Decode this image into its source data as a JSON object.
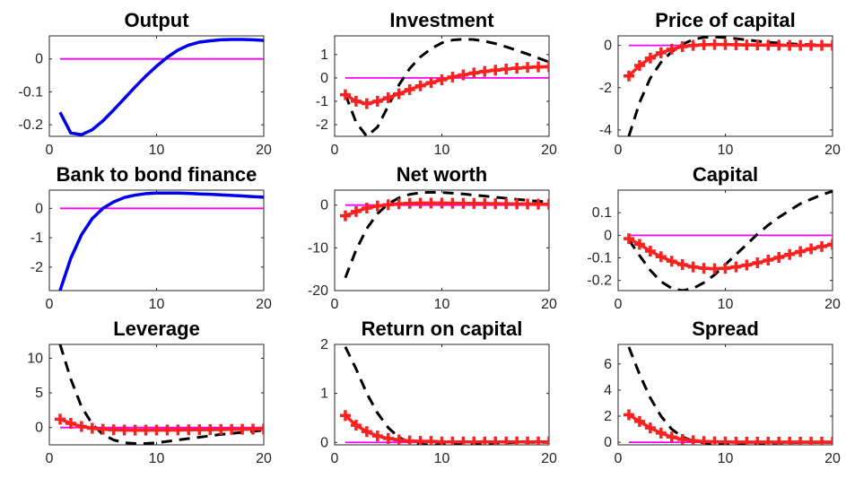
{
  "figure": {
    "colors": {
      "model": "#0000ee",
      "data_line": "#000000",
      "marker_series": "#ff1f1f",
      "zero_line": "#ff00ff"
    }
  },
  "chart_data": [
    {
      "type": "line",
      "title": "Output",
      "xlim": [
        0,
        20
      ],
      "ylim": [
        -0.235,
        0.07
      ],
      "xticks": [
        0,
        10,
        20
      ],
      "xtick_labels": [
        "0",
        "10",
        "20"
      ],
      "yticks": [
        0,
        -0.1,
        -0.2
      ],
      "ytick_labels": [
        "0",
        "-0.1",
        "-0.2"
      ],
      "series": [
        {
          "style": "solid-blue",
          "x": [
            1,
            2,
            3,
            4,
            5,
            6,
            7,
            8,
            9,
            10,
            11,
            12,
            13,
            14,
            15,
            16,
            17,
            18,
            19,
            20
          ],
          "values": [
            -0.162,
            -0.225,
            -0.23,
            -0.215,
            -0.188,
            -0.155,
            -0.12,
            -0.085,
            -0.052,
            -0.022,
            0.005,
            0.027,
            0.042,
            0.051,
            0.055,
            0.058,
            0.059,
            0.059,
            0.058,
            0.056
          ]
        },
        {
          "style": "zero-magenta",
          "x": [
            1,
            20
          ],
          "values": [
            0,
            0
          ]
        }
      ]
    },
    {
      "type": "line",
      "title": "Investment",
      "xlim": [
        0,
        20
      ],
      "ylim": [
        -2.5,
        1.8
      ],
      "xticks": [
        0,
        10,
        20
      ],
      "xtick_labels": [
        "0",
        "10",
        "20"
      ],
      "yticks": [
        1,
        0,
        -1,
        -2
      ],
      "ytick_labels": [
        "1",
        "0",
        "-1",
        "-2"
      ],
      "series": [
        {
          "style": "dashed-black",
          "x": [
            1,
            2,
            3,
            4,
            5,
            6,
            7,
            8,
            9,
            10,
            11,
            12,
            13,
            14,
            15,
            16,
            17,
            18,
            19,
            20
          ],
          "values": [
            -0.7,
            -1.9,
            -2.5,
            -2.1,
            -1.2,
            -0.3,
            0.4,
            0.9,
            1.25,
            1.5,
            1.62,
            1.66,
            1.64,
            1.57,
            1.47,
            1.33,
            1.18,
            1.02,
            0.85,
            0.68
          ]
        },
        {
          "style": "plus-red",
          "x": [
            1,
            2,
            3,
            4,
            5,
            6,
            7,
            8,
            9,
            10,
            11,
            12,
            13,
            14,
            15,
            16,
            17,
            18,
            19,
            20
          ],
          "values": [
            -0.72,
            -1.0,
            -1.1,
            -1.0,
            -0.85,
            -0.68,
            -0.5,
            -0.34,
            -0.2,
            -0.08,
            0.04,
            0.13,
            0.21,
            0.28,
            0.33,
            0.38,
            0.42,
            0.45,
            0.47,
            0.48
          ]
        },
        {
          "style": "zero-magenta",
          "x": [
            1,
            20
          ],
          "values": [
            0,
            0
          ]
        }
      ]
    },
    {
      "type": "line",
      "title": "Price of capital",
      "xlim": [
        0,
        20
      ],
      "ylim": [
        -4.3,
        0.45
      ],
      "xticks": [
        0,
        10,
        20
      ],
      "xtick_labels": [
        "0",
        "10",
        "20"
      ],
      "yticks": [
        0,
        -2,
        -4
      ],
      "ytick_labels": [
        "0",
        "-2",
        "-4"
      ],
      "series": [
        {
          "style": "dashed-black",
          "x": [
            1,
            2,
            3,
            4,
            5,
            6,
            7,
            8,
            9,
            10,
            11,
            12,
            13,
            14,
            15,
            16,
            17,
            18,
            19,
            20
          ],
          "values": [
            -4.3,
            -2.7,
            -1.55,
            -0.8,
            -0.3,
            0.05,
            0.28,
            0.38,
            0.4,
            0.37,
            0.32,
            0.26,
            0.2,
            0.15,
            0.11,
            0.08,
            0.05,
            0.03,
            0.02,
            0.01
          ]
        },
        {
          "style": "plus-red",
          "x": [
            1,
            2,
            3,
            4,
            5,
            6,
            7,
            8,
            9,
            10,
            11,
            12,
            13,
            14,
            15,
            16,
            17,
            18,
            19,
            20
          ],
          "values": [
            -1.45,
            -0.95,
            -0.6,
            -0.35,
            -0.18,
            -0.06,
            0.0,
            0.03,
            0.04,
            0.04,
            0.03,
            0.02,
            0.02,
            0.01,
            0.01,
            0.0,
            0.0,
            0.0,
            0.0,
            0.0
          ]
        },
        {
          "style": "zero-magenta",
          "x": [
            1,
            20
          ],
          "values": [
            0,
            0
          ]
        }
      ]
    },
    {
      "type": "line",
      "title": "Bank to bond finance",
      "xlim": [
        0,
        20
      ],
      "ylim": [
        -2.8,
        0.62
      ],
      "xticks": [
        0,
        10,
        20
      ],
      "xtick_labels": [
        "0",
        "10",
        "20"
      ],
      "yticks": [
        0,
        -1,
        -2
      ],
      "ytick_labels": [
        "0",
        "-1",
        "-2"
      ],
      "series": [
        {
          "style": "solid-blue",
          "x": [
            1,
            2,
            3,
            4,
            5,
            6,
            7,
            8,
            9,
            10,
            11,
            12,
            13,
            14,
            15,
            16,
            17,
            18,
            19,
            20
          ],
          "values": [
            -2.8,
            -1.7,
            -0.9,
            -0.35,
            0.0,
            0.22,
            0.37,
            0.45,
            0.5,
            0.52,
            0.52,
            0.52,
            0.51,
            0.49,
            0.48,
            0.46,
            0.44,
            0.42,
            0.4,
            0.38
          ]
        },
        {
          "style": "zero-magenta",
          "x": [
            1,
            20
          ],
          "values": [
            0,
            0
          ]
        }
      ]
    },
    {
      "type": "line",
      "title": "Net worth",
      "xlim": [
        0,
        20
      ],
      "ylim": [
        -20,
        3.5
      ],
      "xticks": [
        0,
        10,
        20
      ],
      "xtick_labels": [
        "0",
        "10",
        "20"
      ],
      "yticks": [
        0,
        -10,
        -20
      ],
      "ytick_labels": [
        "0",
        "-10",
        "-20"
      ],
      "series": [
        {
          "style": "dashed-black",
          "x": [
            1,
            2,
            3,
            4,
            5,
            6,
            7,
            8,
            9,
            10,
            11,
            12,
            13,
            14,
            15,
            16,
            17,
            18,
            19,
            20
          ],
          "values": [
            -17,
            -10.5,
            -5.5,
            -2.0,
            0.3,
            1.7,
            2.5,
            2.9,
            3.0,
            2.95,
            2.8,
            2.6,
            2.35,
            2.1,
            1.85,
            1.6,
            1.35,
            1.1,
            0.9,
            0.7
          ]
        },
        {
          "style": "plus-red",
          "x": [
            1,
            2,
            3,
            4,
            5,
            6,
            7,
            8,
            9,
            10,
            11,
            12,
            13,
            14,
            15,
            16,
            17,
            18,
            19,
            20
          ],
          "values": [
            -2.5,
            -1.5,
            -0.7,
            -0.2,
            0.1,
            0.3,
            0.4,
            0.45,
            0.45,
            0.45,
            0.42,
            0.4,
            0.38,
            0.35,
            0.32,
            0.3,
            0.28,
            0.25,
            0.22,
            0.2
          ]
        },
        {
          "style": "zero-magenta",
          "x": [
            1,
            20
          ],
          "values": [
            0,
            0
          ]
        }
      ]
    },
    {
      "type": "line",
      "title": "Capital",
      "xlim": [
        0,
        20
      ],
      "ylim": [
        -0.245,
        0.2
      ],
      "xticks": [
        0,
        10,
        20
      ],
      "xtick_labels": [
        "0",
        "10",
        "20"
      ],
      "yticks": [
        0.1,
        0,
        -0.1,
        -0.2
      ],
      "ytick_labels": [
        "0.1",
        "0",
        "-0.1",
        "-0.2"
      ],
      "series": [
        {
          "style": "dashed-black",
          "x": [
            1,
            2,
            3,
            4,
            5,
            6,
            7,
            8,
            9,
            10,
            11,
            12,
            13,
            14,
            15,
            16,
            17,
            18,
            19,
            20
          ],
          "values": [
            -0.02,
            -0.09,
            -0.155,
            -0.205,
            -0.235,
            -0.245,
            -0.235,
            -0.21,
            -0.175,
            -0.13,
            -0.085,
            -0.04,
            0.005,
            0.045,
            0.08,
            0.11,
            0.14,
            0.16,
            0.18,
            0.195
          ]
        },
        {
          "style": "plus-red",
          "x": [
            1,
            2,
            3,
            4,
            5,
            6,
            7,
            8,
            9,
            10,
            11,
            12,
            13,
            14,
            15,
            16,
            17,
            18,
            19,
            20
          ],
          "values": [
            -0.015,
            -0.04,
            -0.07,
            -0.095,
            -0.115,
            -0.13,
            -0.14,
            -0.146,
            -0.148,
            -0.146,
            -0.14,
            -0.132,
            -0.122,
            -0.11,
            -0.098,
            -0.085,
            -0.072,
            -0.06,
            -0.05,
            -0.04
          ]
        },
        {
          "style": "zero-magenta",
          "x": [
            1,
            20
          ],
          "values": [
            0,
            0
          ]
        }
      ]
    },
    {
      "type": "line",
      "title": "Leverage",
      "xlim": [
        0,
        20
      ],
      "ylim": [
        -2.5,
        12
      ],
      "xticks": [
        0,
        10,
        20
      ],
      "xtick_labels": [
        "0",
        "10",
        "20"
      ],
      "yticks": [
        10,
        5,
        0
      ],
      "ytick_labels": [
        "10",
        "5",
        "0"
      ],
      "series": [
        {
          "style": "dashed-black",
          "x": [
            1,
            2,
            3,
            4,
            5,
            6,
            7,
            8,
            9,
            10,
            11,
            12,
            13,
            14,
            15,
            16,
            17,
            18,
            19,
            20
          ],
          "values": [
            12,
            7.0,
            3.0,
            0.5,
            -1.0,
            -1.8,
            -2.2,
            -2.3,
            -2.3,
            -2.2,
            -2.0,
            -1.8,
            -1.6,
            -1.4,
            -1.2,
            -1.0,
            -0.85,
            -0.7,
            -0.55,
            -0.4
          ]
        },
        {
          "style": "plus-red",
          "x": [
            1,
            2,
            3,
            4,
            5,
            6,
            7,
            8,
            9,
            10,
            11,
            12,
            13,
            14,
            15,
            16,
            17,
            18,
            19,
            20
          ],
          "values": [
            1.2,
            0.6,
            0.15,
            -0.1,
            -0.25,
            -0.33,
            -0.37,
            -0.38,
            -0.38,
            -0.37,
            -0.36,
            -0.35,
            -0.33,
            -0.32,
            -0.3,
            -0.28,
            -0.27,
            -0.25,
            -0.23,
            -0.22
          ]
        },
        {
          "style": "zero-magenta",
          "x": [
            1,
            20
          ],
          "values": [
            0,
            0
          ]
        }
      ]
    },
    {
      "type": "line",
      "title": "Return on capital",
      "xlim": [
        0,
        20
      ],
      "ylim": [
        -0.05,
        2.0
      ],
      "xticks": [
        0,
        10,
        20
      ],
      "xtick_labels": [
        "0",
        "10",
        "20"
      ],
      "yticks": [
        2,
        1,
        0
      ],
      "ytick_labels": [
        "2",
        "1",
        "0"
      ],
      "series": [
        {
          "style": "dashed-black",
          "x": [
            1,
            2,
            3,
            4,
            5,
            6,
            7,
            8,
            9,
            10,
            11,
            12,
            13,
            14,
            15,
            16,
            17,
            18,
            19,
            20
          ],
          "values": [
            1.95,
            1.5,
            1.0,
            0.6,
            0.3,
            0.1,
            0.0,
            -0.04,
            -0.05,
            -0.05,
            -0.04,
            -0.03,
            -0.02,
            -0.02,
            -0.01,
            -0.01,
            0.0,
            0.0,
            0.0,
            0.0
          ]
        },
        {
          "style": "plus-red",
          "x": [
            1,
            2,
            3,
            4,
            5,
            6,
            7,
            8,
            9,
            10,
            11,
            12,
            13,
            14,
            15,
            16,
            17,
            18,
            19,
            20
          ],
          "values": [
            0.55,
            0.35,
            0.22,
            0.13,
            0.08,
            0.05,
            0.03,
            0.02,
            0.02,
            0.01,
            0.01,
            0.01,
            0.01,
            0.01,
            0.01,
            0.01,
            0.01,
            0.01,
            0.01,
            0.01
          ]
        },
        {
          "style": "zero-magenta",
          "x": [
            1,
            20
          ],
          "values": [
            0,
            0
          ]
        }
      ]
    },
    {
      "type": "line",
      "title": "Spread",
      "xlim": [
        0,
        20
      ],
      "ylim": [
        -0.2,
        7.5
      ],
      "xticks": [
        0,
        10,
        20
      ],
      "xtick_labels": [
        "0",
        "10",
        "20"
      ],
      "yticks": [
        6,
        4,
        2,
        0
      ],
      "ytick_labels": [
        "6",
        "4",
        "2",
        "0"
      ],
      "series": [
        {
          "style": "dashed-black",
          "x": [
            1,
            2,
            3,
            4,
            5,
            6,
            7,
            8,
            9,
            10,
            11,
            12,
            13,
            14,
            15,
            16,
            17,
            18,
            19,
            20
          ],
          "values": [
            7.3,
            5.2,
            3.4,
            2.0,
            1.0,
            0.4,
            0.1,
            -0.05,
            -0.1,
            -0.12,
            -0.12,
            -0.1,
            -0.08,
            -0.06,
            -0.05,
            -0.04,
            -0.03,
            -0.02,
            -0.02,
            -0.01
          ]
        },
        {
          "style": "plus-red",
          "x": [
            1,
            2,
            3,
            4,
            5,
            6,
            7,
            8,
            9,
            10,
            11,
            12,
            13,
            14,
            15,
            16,
            17,
            18,
            19,
            20
          ],
          "values": [
            2.1,
            1.6,
            1.1,
            0.7,
            0.4,
            0.22,
            0.12,
            0.06,
            0.03,
            0.02,
            0.01,
            0.01,
            0.01,
            0.01,
            0.01,
            0.01,
            0.01,
            0.01,
            0.01,
            0.01
          ]
        },
        {
          "style": "zero-magenta",
          "x": [
            1,
            20
          ],
          "values": [
            0,
            0
          ]
        }
      ]
    }
  ]
}
